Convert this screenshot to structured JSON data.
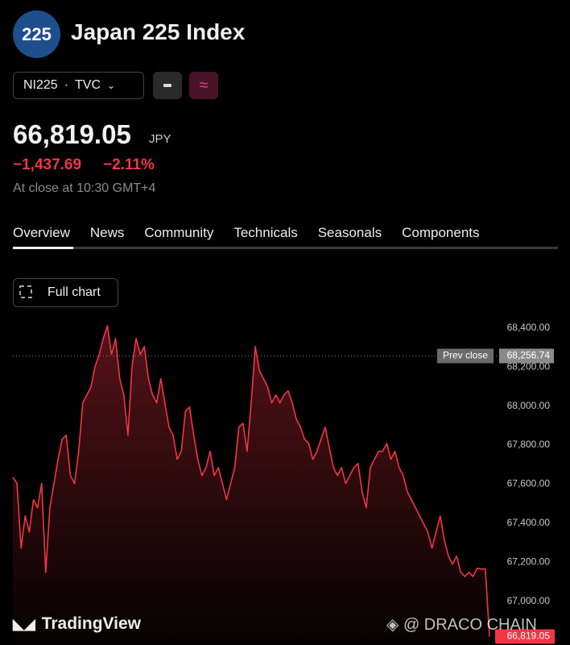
{
  "header": {
    "logo": "225",
    "title": "Japan 225 Index",
    "symbol": "NI225",
    "exchange": "TVC",
    "compare_icon": "≈",
    "price": "66,819.05",
    "currency": "JPY",
    "change": "−1,437.69",
    "change_percent": "−2.11%",
    "status": "At close at 10:30 GMT+4"
  },
  "tabs": [
    "Overview",
    "News",
    "Community",
    "Technicals",
    "Seasonals",
    "Components"
  ],
  "full_chart_button": "Full chart",
  "chart_data": {
    "type": "area",
    "color": "#f23645",
    "values": [
      67636,
      67603,
      67272,
      67437,
      67355,
      67520,
      67479,
      67603,
      67148,
      67479,
      67603,
      67727,
      67830,
      67850,
      67644,
      67603,
      67768,
      68016,
      68057,
      68098,
      68202,
      68264,
      68346,
      68412,
      68264,
      68346,
      68140,
      68057,
      67850,
      68202,
      68346,
      68264,
      68305,
      68140,
      68057,
      68016,
      68140,
      68016,
      67892,
      67850,
      67727,
      67768,
      67974,
      67995,
      67850,
      67727,
      67644,
      67685,
      67768,
      67644,
      67685,
      67603,
      67520,
      67603,
      67685,
      67892,
      67912,
      67768,
      68016,
      68305,
      68181,
      68140,
      68098,
      68016,
      68057,
      68016,
      68057,
      68078,
      68016,
      67933,
      67892,
      67830,
      67809,
      67727,
      67768,
      67830,
      67892,
      67788,
      67685,
      67644,
      67685,
      67603,
      67644,
      67685,
      67706,
      67561,
      67479,
      67685,
      67727,
      67768,
      67768,
      67809,
      67727,
      67768,
      67685,
      67644,
      67561,
      67520,
      67479,
      67437,
      67396,
      67355,
      67272,
      67355,
      67437,
      67313,
      67231,
      67190,
      67231,
      67148,
      67127,
      67148,
      67127,
      67169,
      67165,
      67165,
      66819.05
    ],
    "ylim": [
      66780,
      68490
    ],
    "yticks": [
      {
        "value": 67000,
        "label": "67,000.00"
      },
      {
        "value": 67200,
        "label": "67,200.00"
      },
      {
        "value": 67400,
        "label": "67,400.00"
      },
      {
        "value": 67600,
        "label": "67,600.00"
      },
      {
        "value": 67800,
        "label": "67,800.00"
      },
      {
        "value": 68000,
        "label": "68,000.00"
      },
      {
        "value": 68200,
        "label": "68,200.00"
      },
      {
        "value": 68400,
        "label": "68,400.00"
      }
    ],
    "prev_close": {
      "label": "Prev close",
      "value": 68256.74,
      "value_label": "68,256.74"
    },
    "last_label": "66,819.05"
  },
  "footer": {
    "brand": "TradingView",
    "watermark": "@ DRACO CHAIN"
  }
}
